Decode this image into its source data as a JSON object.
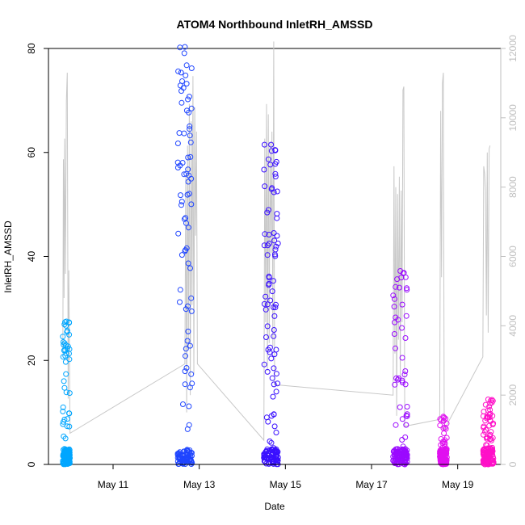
{
  "chart_data": {
    "type": "scatter",
    "title": "ATOM4 Northbound InletRH_AMSSD",
    "xlabel": "Date",
    "ylabel": "InletRH_AMSSD",
    "xlim": [
      "2018-05-09T12:00",
      "2018-05-20T00:00"
    ],
    "ylim": [
      0,
      80
    ],
    "y2lim": [
      0,
      12000
    ],
    "x_ticks": [
      {
        "value": "2018-05-11",
        "label": "May 11"
      },
      {
        "value": "2018-05-13",
        "label": "May 13"
      },
      {
        "value": "2018-05-15",
        "label": "May 15"
      },
      {
        "value": "2018-05-17",
        "label": "May 17"
      },
      {
        "value": "2018-05-19",
        "label": "May 19"
      }
    ],
    "y_ticks": [
      0,
      20,
      40,
      60,
      80
    ],
    "y2_ticks": [
      0,
      2000,
      4000,
      6000,
      8000,
      10000,
      12000
    ],
    "grid": false,
    "colors": {
      "gray_series": "#c8c8c8",
      "cluster_1": "#00a6ff",
      "cluster_2": "#1f45ff",
      "cluster_3": "#3a10ff",
      "cluster_4": "#9a0aff",
      "cluster_5": "#e010f0",
      "cluster_6": "#ff10c8"
    },
    "series": [
      {
        "axis": "left",
        "style": "points",
        "clusters": [
          {
            "start": "2018-05-09T20:00",
            "end": "2018-05-10T00:00",
            "color_key": "cluster_1",
            "peak": 27.5,
            "high_density": 0.25
          },
          {
            "start": "2018-05-12T12:00",
            "end": "2018-05-12T20:00",
            "color_key": "cluster_2",
            "peak": 80.3,
            "high_density": 0.5
          },
          {
            "start": "2018-05-14T12:00",
            "end": "2018-05-14T20:00",
            "color_key": "cluster_3",
            "peak": 61.5,
            "high_density": 0.55
          },
          {
            "start": "2018-05-17T12:00",
            "end": "2018-05-17T20:00",
            "color_key": "cluster_4",
            "peak": 37.2,
            "high_density": 0.3
          },
          {
            "start": "2018-05-18T14:00",
            "end": "2018-05-18T18:00",
            "color_key": "cluster_5",
            "peak": 9.2,
            "high_density": 0.2
          },
          {
            "start": "2018-05-19T14:00",
            "end": "2018-05-19T20:00",
            "color_key": "cluster_6",
            "peak": 12.5,
            "high_density": 0.35
          }
        ]
      },
      {
        "axis": "right",
        "style": "line",
        "color_key": "gray_series",
        "points": [
          [
            "2018-05-09T20:00",
            3200
          ],
          [
            "2018-05-09T20:20",
            8800
          ],
          [
            "2018-05-09T20:40",
            4800
          ],
          [
            "2018-05-09T21:00",
            9400
          ],
          [
            "2018-05-09T21:30",
            5500
          ],
          [
            "2018-05-09T22:00",
            10500
          ],
          [
            "2018-05-09T22:30",
            11300
          ],
          [
            "2018-05-09T23:00",
            1900
          ],
          [
            "2018-05-09T23:20",
            5600
          ],
          [
            "2018-05-10T00:00",
            900
          ],
          [
            "2018-05-12T16:00",
            2900
          ],
          [
            "2018-05-12T16:30",
            8300
          ],
          [
            "2018-05-12T17:00",
            1500
          ],
          [
            "2018-05-12T17:30",
            9200
          ],
          [
            "2018-05-12T18:00",
            3300
          ],
          [
            "2018-05-12T18:30",
            10400
          ],
          [
            "2018-05-12T19:00",
            2000
          ],
          [
            "2018-05-12T19:30",
            9900
          ],
          [
            "2018-05-12T20:00",
            4600
          ],
          [
            "2018-05-12T20:30",
            11200
          ],
          [
            "2018-05-12T21:00",
            2600
          ],
          [
            "2018-05-12T21:30",
            10300
          ],
          [
            "2018-05-12T22:00",
            6600
          ],
          [
            "2018-05-12T22:30",
            9600
          ],
          [
            "2018-05-12T23:00",
            2900
          ],
          [
            "2018-05-14T12:00",
            700
          ],
          [
            "2018-05-14T12:30",
            9400
          ],
          [
            "2018-05-14T13:00",
            4100
          ],
          [
            "2018-05-14T13:30",
            10400
          ],
          [
            "2018-05-14T14:00",
            2700
          ],
          [
            "2018-05-14T14:30",
            10100
          ],
          [
            "2018-05-14T15:00",
            3500
          ],
          [
            "2018-05-14T15:30",
            9300
          ],
          [
            "2018-05-14T16:00",
            6100
          ],
          [
            "2018-05-14T16:30",
            9600
          ],
          [
            "2018-05-14T17:00",
            3400
          ],
          [
            "2018-05-14T17:30",
            12200
          ],
          [
            "2018-05-14T18:00",
            2300
          ],
          [
            "2018-05-17T12:00",
            2000
          ],
          [
            "2018-05-17T12:30",
            8600
          ],
          [
            "2018-05-17T13:00",
            3200
          ],
          [
            "2018-05-17T13:30",
            8000
          ],
          [
            "2018-05-17T14:00",
            1400
          ],
          [
            "2018-05-17T14:30",
            7800
          ],
          [
            "2018-05-17T15:00",
            3600
          ],
          [
            "2018-05-17T15:30",
            8300
          ],
          [
            "2018-05-17T16:00",
            2400
          ],
          [
            "2018-05-17T16:30",
            7900
          ],
          [
            "2018-05-17T17:00",
            4100
          ],
          [
            "2018-05-17T17:30",
            10800
          ],
          [
            "2018-05-17T18:00",
            10900
          ],
          [
            "2018-05-17T18:30",
            1100
          ],
          [
            "2018-05-18T14:00",
            1300
          ],
          [
            "2018-05-18T14:30",
            10200
          ],
          [
            "2018-05-18T15:00",
            5400
          ],
          [
            "2018-05-18T15:30",
            11000
          ],
          [
            "2018-05-18T16:00",
            11300
          ],
          [
            "2018-05-18T16:30",
            1000
          ],
          [
            "2018-05-19T14:00",
            3100
          ],
          [
            "2018-05-19T14:30",
            8600
          ],
          [
            "2018-05-19T15:00",
            8400
          ],
          [
            "2018-05-19T15:30",
            7900
          ],
          [
            "2018-05-19T16:00",
            4300
          ],
          [
            "2018-05-19T16:30",
            9000
          ],
          [
            "2018-05-19T17:00",
            3800
          ],
          [
            "2018-05-19T17:30",
            9100
          ],
          [
            "2018-05-19T18:00",
            9200
          ]
        ]
      }
    ]
  }
}
